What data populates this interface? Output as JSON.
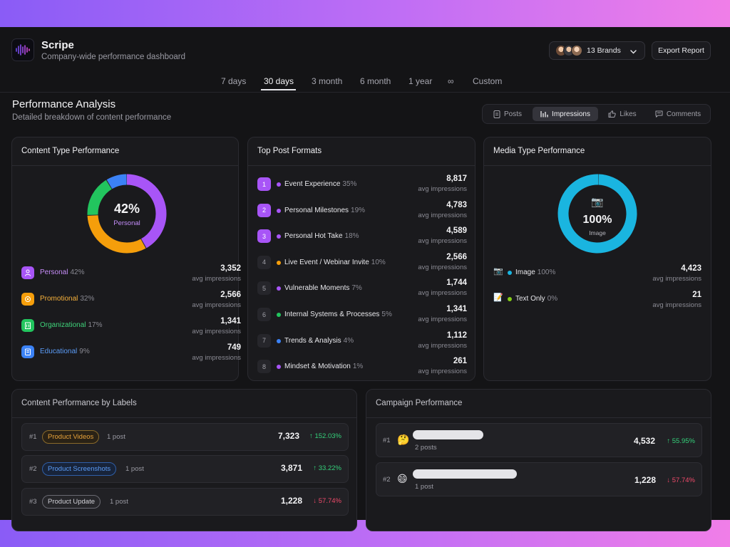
{
  "app": {
    "name": "Scripe",
    "subtitle": "Company-wide performance dashboard",
    "brands_label": "13 Brands",
    "export_label": "Export Report"
  },
  "range_tabs": [
    "7 days",
    "30 days",
    "3 month",
    "6 month",
    "1 year",
    "∞",
    "Custom"
  ],
  "range_selected": "30 days",
  "section": {
    "title": "Performance Analysis",
    "subtitle": "Detailed breakdown of content performance"
  },
  "metric_tabs": [
    {
      "label": "Posts",
      "icon": "document-icon"
    },
    {
      "label": "Impressions",
      "icon": "bar-chart-icon"
    },
    {
      "label": "Likes",
      "icon": "thumbs-up-icon"
    },
    {
      "label": "Comments",
      "icon": "comment-icon"
    }
  ],
  "metric_selected": "Impressions",
  "content_type": {
    "title": "Content Type Performance",
    "center_value": "42%",
    "center_label": "Personal",
    "rows": [
      {
        "name": "Personal",
        "pct": "42%",
        "value": "3,352",
        "caption": "avg impressions",
        "color": "#a855f7",
        "icon": "person-icon"
      },
      {
        "name": "Promotional",
        "pct": "32%",
        "value": "2,566",
        "caption": "avg impressions",
        "color": "#f59e0b",
        "icon": "megaphone-icon"
      },
      {
        "name": "Organizational",
        "pct": "17%",
        "value": "1,341",
        "caption": "avg impressions",
        "color": "#22c55e",
        "icon": "building-icon"
      },
      {
        "name": "Educational",
        "pct": "9%",
        "value": "749",
        "caption": "avg impressions",
        "color": "#3b82f6",
        "icon": "book-icon"
      }
    ]
  },
  "top_formats": {
    "title": "Top Post Formats",
    "rows": [
      {
        "rank": "1",
        "name": "Event Experience",
        "pct": "35%",
        "value": "8,817",
        "caption": "avg impressions",
        "color": "#a855f7"
      },
      {
        "rank": "2",
        "name": "Personal Milestones",
        "pct": "19%",
        "value": "4,783",
        "caption": "avg impressions",
        "color": "#a855f7"
      },
      {
        "rank": "3",
        "name": "Personal Hot Take",
        "pct": "18%",
        "value": "4,589",
        "caption": "avg impressions",
        "color": "#a855f7"
      },
      {
        "rank": "4",
        "name": "Live Event / Webinar Invite",
        "pct": "10%",
        "value": "2,566",
        "caption": "avg impressions",
        "color": "#f59e0b"
      },
      {
        "rank": "5",
        "name": "Vulnerable Moments",
        "pct": "7%",
        "value": "1,744",
        "caption": "avg impressions",
        "color": "#a855f7"
      },
      {
        "rank": "6",
        "name": "Internal Systems & Processes",
        "pct": "5%",
        "value": "1,341",
        "caption": "avg impressions",
        "color": "#22c55e"
      },
      {
        "rank": "7",
        "name": "Trends & Analysis",
        "pct": "4%",
        "value": "1,112",
        "caption": "avg impressions",
        "color": "#3b82f6"
      },
      {
        "rank": "8",
        "name": "Mindset & Motivation",
        "pct": "1%",
        "value": "261",
        "caption": "avg impressions",
        "color": "#a855f7"
      }
    ]
  },
  "media_type": {
    "title": "Media Type Performance",
    "center_value": "100%",
    "center_label": "Image",
    "rows": [
      {
        "icon": "📷",
        "name": "Image",
        "pct": "100%",
        "value": "4,423",
        "caption": "avg impressions",
        "color": "#1ab5e0"
      },
      {
        "icon": "📝",
        "name": "Text Only",
        "pct": "0%",
        "value": "21",
        "caption": "avg impressions",
        "color": "#84cc16"
      }
    ]
  },
  "labels_perf": {
    "title": "Content Performance by Labels",
    "rows": [
      {
        "rank": "#1",
        "label": "Product Videos",
        "count": "1 post",
        "value": "7,323",
        "delta": "152.03%",
        "dir": "up",
        "color": "#e8a33a"
      },
      {
        "rank": "#2",
        "label": "Product Screenshots",
        "count": "1 post",
        "value": "3,871",
        "delta": "33.22%",
        "dir": "up",
        "color": "#4a8cf0"
      },
      {
        "rank": "#3",
        "label": "Product Update",
        "count": "1 post",
        "value": "1,228",
        "delta": "57.74%",
        "dir": "down",
        "color": "#a0a0a8"
      }
    ]
  },
  "campaign_perf": {
    "title": "Campaign Performance",
    "rows": [
      {
        "rank": "#1",
        "emoji": "🤔",
        "posts": "2 posts",
        "value": "4,532",
        "delta": "55.95%",
        "dir": "up"
      },
      {
        "rank": "#2",
        "emoji": "😄",
        "posts": "1 post",
        "value": "1,228",
        "delta": "57.74%",
        "dir": "down"
      }
    ]
  }
}
